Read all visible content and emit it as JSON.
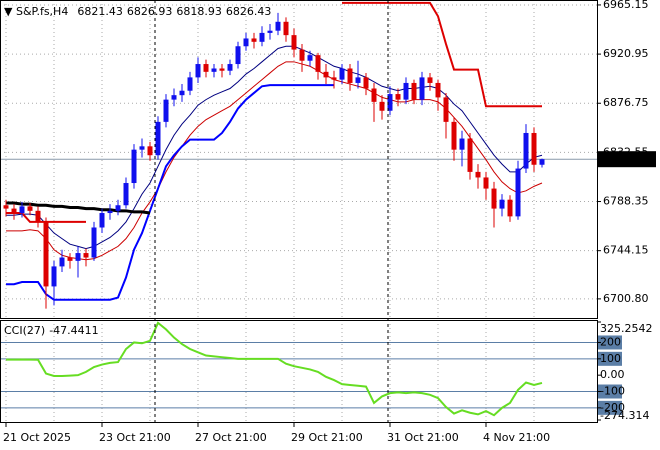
{
  "chart_data": [
    {
      "type": "candlestick",
      "title": "S&P.fs,H4",
      "categories": [
        "21 Oct 2025",
        null,
        null,
        null,
        null,
        null,
        null,
        null,
        null,
        null,
        null,
        null,
        "23 Oct 21:00",
        null,
        null,
        null,
        null,
        null,
        null,
        null,
        null,
        null,
        null,
        null,
        "27 Oct 21:00",
        null,
        null,
        null,
        null,
        null,
        null,
        null,
        null,
        null,
        null,
        null,
        "29 Oct 21:00",
        null,
        null,
        null,
        null,
        null,
        null,
        null,
        null,
        null,
        null,
        null,
        "31 Oct 21:00",
        null,
        null,
        null,
        null,
        null,
        null,
        null,
        null,
        null,
        null,
        null,
        "4 Nov 21:00",
        null,
        null,
        null,
        null,
        null,
        null,
        null
      ],
      "open": [
        6785,
        6782,
        6778,
        6784,
        6780,
        6770,
        6712,
        6730,
        6738,
        6735,
        6742,
        6738,
        6765,
        6778,
        6780,
        6785,
        6805,
        6835,
        6838,
        6830,
        6860,
        6880,
        6884,
        6888,
        6900,
        6912,
        6905,
        6908,
        6906,
        6912,
        6928,
        6935,
        6932,
        6940,
        6942,
        6950,
        6938,
        6925,
        6915,
        6920,
        6905,
        6900,
        6898,
        6908,
        6895,
        6900,
        6890,
        6878,
        6870,
        6885,
        6880,
        6895,
        6880,
        6900,
        6895,
        6882,
        6860,
        6835,
        6845,
        6815,
        6810,
        6800,
        6782,
        6790,
        6775,
        6818,
        6850,
        6821.43
      ],
      "high": [
        6790,
        6786,
        6788,
        6787,
        6784,
        6774,
        6735,
        6745,
        6742,
        6748,
        6746,
        6770,
        6782,
        6786,
        6790,
        6810,
        6840,
        6845,
        6842,
        6865,
        6885,
        6890,
        6894,
        6905,
        6918,
        6916,
        6912,
        6912,
        6916,
        6932,
        6940,
        6940,
        6946,
        6948,
        6958,
        6954,
        6944,
        6930,
        6924,
        6922,
        6912,
        6906,
        6912,
        6912,
        6915,
        6904,
        6895,
        6884,
        6892,
        6890,
        6900,
        6898,
        6905,
        6904,
        6898,
        6886,
        6864,
        6852,
        6850,
        6822,
        6815,
        6806,
        6795,
        6794,
        6825,
        6858,
        6855,
        6826.93
      ],
      "low": [
        6775,
        6772,
        6774,
        6776,
        6765,
        6692,
        6695,
        6725,
        6728,
        6720,
        6730,
        6735,
        6760,
        6772,
        6776,
        6782,
        6800,
        6828,
        6825,
        6826,
        6855,
        6874,
        6878,
        6884,
        6895,
        6900,
        6900,
        6900,
        6902,
        6908,
        6924,
        6926,
        6928,
        6934,
        6938,
        6932,
        6918,
        6905,
        6910,
        6898,
        6894,
        6890,
        6894,
        6888,
        6890,
        6884,
        6860,
        6862,
        6866,
        6874,
        6876,
        6876,
        6875,
        6888,
        6870,
        6845,
        6825,
        6820,
        6808,
        6800,
        6790,
        6765,
        6775,
        6770,
        6772,
        6814,
        6815,
        6818.93
      ],
      "close": [
        6782,
        6778,
        6784,
        6780,
        6770,
        6712,
        6730,
        6738,
        6735,
        6742,
        6738,
        6765,
        6778,
        6780,
        6785,
        6805,
        6835,
        6838,
        6830,
        6860,
        6880,
        6884,
        6888,
        6900,
        6912,
        6905,
        6908,
        6906,
        6912,
        6928,
        6935,
        6932,
        6940,
        6942,
        6950,
        6938,
        6925,
        6915,
        6920,
        6905,
        6900,
        6898,
        6908,
        6895,
        6900,
        6890,
        6878,
        6870,
        6885,
        6880,
        6895,
        6880,
        6900,
        6895,
        6882,
        6860,
        6835,
        6845,
        6815,
        6810,
        6800,
        6782,
        6790,
        6775,
        6818,
        6850,
        6821.43,
        6826.43
      ],
      "up_color": "#1010ee",
      "down_color": "#dd0000",
      "series": [
        {
          "color": "#000080",
          "width": 1,
          "values": [
            6776,
            6776,
            6777,
            6777,
            6776,
            6768,
            6760,
            6755,
            6750,
            6748,
            6746,
            6748,
            6752,
            6756,
            6762,
            6770,
            6782,
            6795,
            6805,
            6820,
            6835,
            6848,
            6858,
            6866,
            6875,
            6880,
            6884,
            6887,
            6890,
            6896,
            6903,
            6908,
            6914,
            6920,
            6926,
            6928,
            6928,
            6925,
            6922,
            6918,
            6914,
            6910,
            6908,
            6905,
            6903,
            6900,
            6896,
            6892,
            6890,
            6888,
            6890,
            6890,
            6891,
            6892,
            6890,
            6884,
            6876,
            6870,
            6860,
            6850,
            6840,
            6830,
            6822,
            6815,
            6815,
            6822,
            6828,
            6830
          ]
        },
        {
          "color": "#cc0000",
          "width": 1,
          "values": [
            6762,
            6762,
            6762,
            6763,
            6762,
            6755,
            6745,
            6740,
            6738,
            6737,
            6736,
            6737,
            6740,
            6744,
            6748,
            6755,
            6765,
            6778,
            6788,
            6800,
            6815,
            6828,
            6838,
            6848,
            6856,
            6862,
            6866,
            6870,
            6874,
            6880,
            6886,
            6892,
            6898,
            6904,
            6910,
            6914,
            6914,
            6912,
            6910,
            6906,
            6902,
            6898,
            6896,
            6894,
            6892,
            6890,
            6886,
            6882,
            6880,
            6878,
            6878,
            6880,
            6880,
            6880,
            6878,
            6872,
            6864,
            6856,
            6846,
            6836,
            6826,
            6815,
            6806,
            6800,
            6796,
            6798,
            6802,
            6805
          ]
        },
        {
          "color": "#0000ff",
          "width": 2,
          "values": [
            6714,
            6714,
            6716,
            6716,
            6716,
            6705,
            6700,
            6700,
            6700,
            6700,
            6700,
            6700,
            6700,
            6700,
            6702,
            6720,
            6745,
            6760,
            6780,
            6800,
            6820,
            6830,
            6838,
            6844,
            6844,
            6844,
            6844,
            6850,
            6860,
            6872,
            6880,
            6886,
            6892,
            6893,
            6893,
            6893,
            6893,
            6893,
            6893,
            6893,
            6893,
            6893,
            null,
            null,
            null,
            null,
            null,
            null,
            null,
            null,
            null,
            null,
            null,
            null,
            null,
            null,
            null,
            null,
            null,
            null,
            null,
            null,
            null,
            null,
            null,
            null,
            null,
            null
          ]
        },
        {
          "color": "#dd0000",
          "width": 2,
          "values": [
            6778,
            6778,
            6778,
            6770,
            6770,
            6770,
            6770,
            6770,
            6770,
            6770,
            6770,
            null,
            null,
            null,
            null,
            null,
            null,
            null,
            null,
            null,
            null,
            null,
            null,
            null,
            null,
            null,
            null,
            null,
            null,
            null,
            null,
            null,
            null,
            null,
            null,
            null,
            null,
            null,
            null,
            null,
            null,
            null,
            6967,
            6967,
            6967,
            6967,
            6967,
            6967,
            6967,
            6967,
            6967,
            6967,
            6967,
            6967,
            6955,
            6930,
            6907,
            6907,
            6907,
            6907,
            6874,
            6874,
            6874,
            6874,
            6874,
            6874,
            6874,
            6874
          ]
        },
        {
          "color": "#000000",
          "width": 3,
          "values": [
            6787,
            6787,
            6786,
            6786,
            6785,
            6785,
            6784,
            6784,
            6783,
            6783,
            6782,
            6782,
            6781,
            6781,
            6780,
            6780,
            6779,
            6779,
            6778,
            null,
            null,
            null,
            null,
            null,
            null,
            null,
            null,
            null,
            null,
            null,
            null,
            null,
            null,
            null,
            null,
            null,
            null,
            null,
            null,
            null,
            null,
            null,
            null,
            null,
            null,
            null,
            null,
            null,
            null,
            null,
            null,
            null,
            null,
            null,
            null,
            null,
            null,
            null,
            null,
            null,
            null,
            null,
            null,
            null,
            null,
            null,
            null,
            null
          ]
        }
      ],
      "ylim": [
        6683.6,
        6969.6
      ],
      "yticks": [
        6965.15,
        6920.95,
        6876.75,
        6832.55,
        6788.35,
        6744.15,
        {
          "value": 6700.8,
          "label": "6700.80"
        }
      ],
      "grid": true
    },
    {
      "type": "line",
      "title": "CCI(27)",
      "series": [
        {
          "color": "#66dd22",
          "values": [
            95,
            95,
            96,
            95,
            94,
            10,
            -5,
            -5,
            -3,
            0,
            20,
            50,
            65,
            75,
            80,
            160,
            200,
            195,
            210,
            320,
            280,
            230,
            190,
            160,
            140,
            120,
            115,
            110,
            105,
            100,
            100,
            100,
            100,
            100,
            100,
            70,
            55,
            45,
            35,
            20,
            -10,
            -30,
            -55,
            -60,
            -65,
            -70,
            -170,
            -130,
            -110,
            -105,
            -110,
            -105,
            -110,
            -120,
            -140,
            -195,
            -235,
            -215,
            -230,
            -240,
            -220,
            -245,
            -200,
            -170,
            -90,
            -45,
            -60,
            -47.4411
          ]
        }
      ],
      "ylim": [
        -274.314,
        325.2542
      ],
      "yticks": [
        325.2542,
        200,
        100,
        {
          "value": 0,
          "label": "0.00"
        },
        -100,
        -200,
        -274.314
      ],
      "levels": [
        200,
        100,
        -100,
        -200
      ],
      "level_color": "#5b7ea6"
    }
  ]
}
